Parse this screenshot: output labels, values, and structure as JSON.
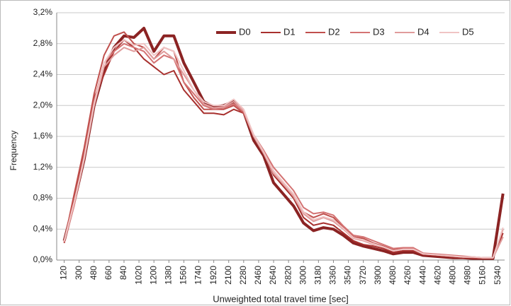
{
  "chart_data": {
    "type": "line",
    "x_label": "Unweighted total travel time [sec]",
    "y_label": "Frequency",
    "x": [
      120,
      240,
      360,
      480,
      600,
      720,
      840,
      960,
      1080,
      1200,
      1320,
      1440,
      1560,
      1680,
      1800,
      1920,
      2040,
      2160,
      2280,
      2400,
      2520,
      2640,
      2760,
      2880,
      3000,
      3120,
      3240,
      3360,
      3480,
      3600,
      3720,
      3840,
      3960,
      4080,
      4200,
      4320,
      4440,
      4560,
      4680,
      4800,
      4920,
      5040,
      5160,
      5280,
      5400
    ],
    "series": [
      {
        "name": "D0",
        "color": "#8b2323",
        "values": [
          0.25,
          0.75,
          1.3,
          2.0,
          2.45,
          2.75,
          2.9,
          2.88,
          3.0,
          2.7,
          2.9,
          2.9,
          2.55,
          2.3,
          2.05,
          1.98,
          2.0,
          2.05,
          1.92,
          1.55,
          1.35,
          1.0,
          0.85,
          0.7,
          0.48,
          0.38,
          0.42,
          0.4,
          0.32,
          0.22,
          0.18,
          0.15,
          0.12,
          0.08,
          0.1,
          0.1,
          0.06,
          0.05,
          0.04,
          0.03,
          0.03,
          0.02,
          0.02,
          0.02,
          0.86
        ]
      },
      {
        "name": "D1",
        "color": "#a8302e",
        "values": [
          0.22,
          0.8,
          1.4,
          2.1,
          2.4,
          2.7,
          2.85,
          2.75,
          2.6,
          2.5,
          2.4,
          2.45,
          2.2,
          2.05,
          1.9,
          1.9,
          1.88,
          1.95,
          1.9,
          1.6,
          1.4,
          1.1,
          0.95,
          0.8,
          0.55,
          0.45,
          0.48,
          0.45,
          0.35,
          0.25,
          0.2,
          0.18,
          0.15,
          0.1,
          0.12,
          0.12,
          0.07,
          0.06,
          0.05,
          0.04,
          0.03,
          0.03,
          0.02,
          0.02,
          0.35
        ]
      },
      {
        "name": "D2",
        "color": "#c0504d",
        "values": [
          0.24,
          0.85,
          1.45,
          2.15,
          2.65,
          2.9,
          2.95,
          2.8,
          2.75,
          2.6,
          2.75,
          2.7,
          2.3,
          2.1,
          1.95,
          1.95,
          1.95,
          2.0,
          1.9,
          1.6,
          1.4,
          1.15,
          1.0,
          0.85,
          0.62,
          0.55,
          0.6,
          0.55,
          0.42,
          0.3,
          0.28,
          0.22,
          0.18,
          0.13,
          0.15,
          0.15,
          0.08,
          0.07,
          0.06,
          0.05,
          0.04,
          0.03,
          0.03,
          0.03,
          0.3
        ]
      },
      {
        "name": "D3",
        "color": "#d47373",
        "values": [
          0.23,
          0.7,
          1.35,
          2.05,
          2.55,
          2.7,
          2.8,
          2.75,
          2.7,
          2.55,
          2.65,
          2.6,
          2.3,
          2.15,
          2.0,
          1.95,
          1.97,
          2.02,
          1.92,
          1.62,
          1.42,
          1.2,
          1.05,
          0.9,
          0.68,
          0.6,
          0.62,
          0.58,
          0.44,
          0.32,
          0.3,
          0.25,
          0.2,
          0.15,
          0.16,
          0.16,
          0.09,
          0.08,
          0.07,
          0.06,
          0.05,
          0.04,
          0.03,
          0.03,
          0.4
        ]
      },
      {
        "name": "D4",
        "color": "#e09c9c",
        "values": [
          0.24,
          0.72,
          1.3,
          2.0,
          2.5,
          2.65,
          2.75,
          2.7,
          2.75,
          2.6,
          2.7,
          2.6,
          2.4,
          2.2,
          2.02,
          1.97,
          1.98,
          2.05,
          1.93,
          1.6,
          1.38,
          1.12,
          0.98,
          0.82,
          0.6,
          0.5,
          0.55,
          0.5,
          0.4,
          0.28,
          0.25,
          0.2,
          0.17,
          0.12,
          0.14,
          0.14,
          0.08,
          0.07,
          0.06,
          0.05,
          0.04,
          0.04,
          0.03,
          0.03,
          0.3
        ]
      },
      {
        "name": "D5",
        "color": "#f0c4c4",
        "values": [
          0.25,
          0.75,
          1.32,
          2.02,
          2.55,
          2.75,
          2.85,
          2.78,
          2.8,
          2.65,
          2.75,
          2.7,
          2.45,
          2.2,
          2.05,
          2.0,
          2.0,
          2.08,
          1.95,
          1.62,
          1.4,
          1.15,
          1.0,
          0.85,
          0.62,
          0.52,
          0.56,
          0.52,
          0.41,
          0.29,
          0.26,
          0.21,
          0.17,
          0.12,
          0.14,
          0.14,
          0.08,
          0.07,
          0.06,
          0.05,
          0.04,
          0.04,
          0.03,
          0.03,
          0.42
        ]
      }
    ],
    "xlim": [
      30,
      5420
    ],
    "xticks": [
      120,
      300,
      480,
      660,
      840,
      1020,
      1200,
      1380,
      1560,
      1740,
      1920,
      2100,
      2280,
      2460,
      2640,
      2820,
      3000,
      3180,
      3360,
      3540,
      3720,
      3900,
      4080,
      4260,
      4440,
      4620,
      4800,
      4980,
      5160,
      5340
    ],
    "ylim": [
      0,
      3.2
    ],
    "yticks": [
      {
        "value": 0,
        "label": "0,0%"
      },
      {
        "value": 0.4,
        "label": "0,4%"
      },
      {
        "value": 0.8,
        "label": "0,8%"
      },
      {
        "value": 1.2,
        "label": "1,2%"
      },
      {
        "value": 1.6,
        "label": "1,6%"
      },
      {
        "value": 2.0,
        "label": "2,0%"
      },
      {
        "value": 2.4,
        "label": "2,4%"
      },
      {
        "value": 2.8,
        "label": "2,8%"
      },
      {
        "value": 3.2,
        "label": "3,2%"
      }
    ],
    "grid": true,
    "legend": "top-right"
  }
}
